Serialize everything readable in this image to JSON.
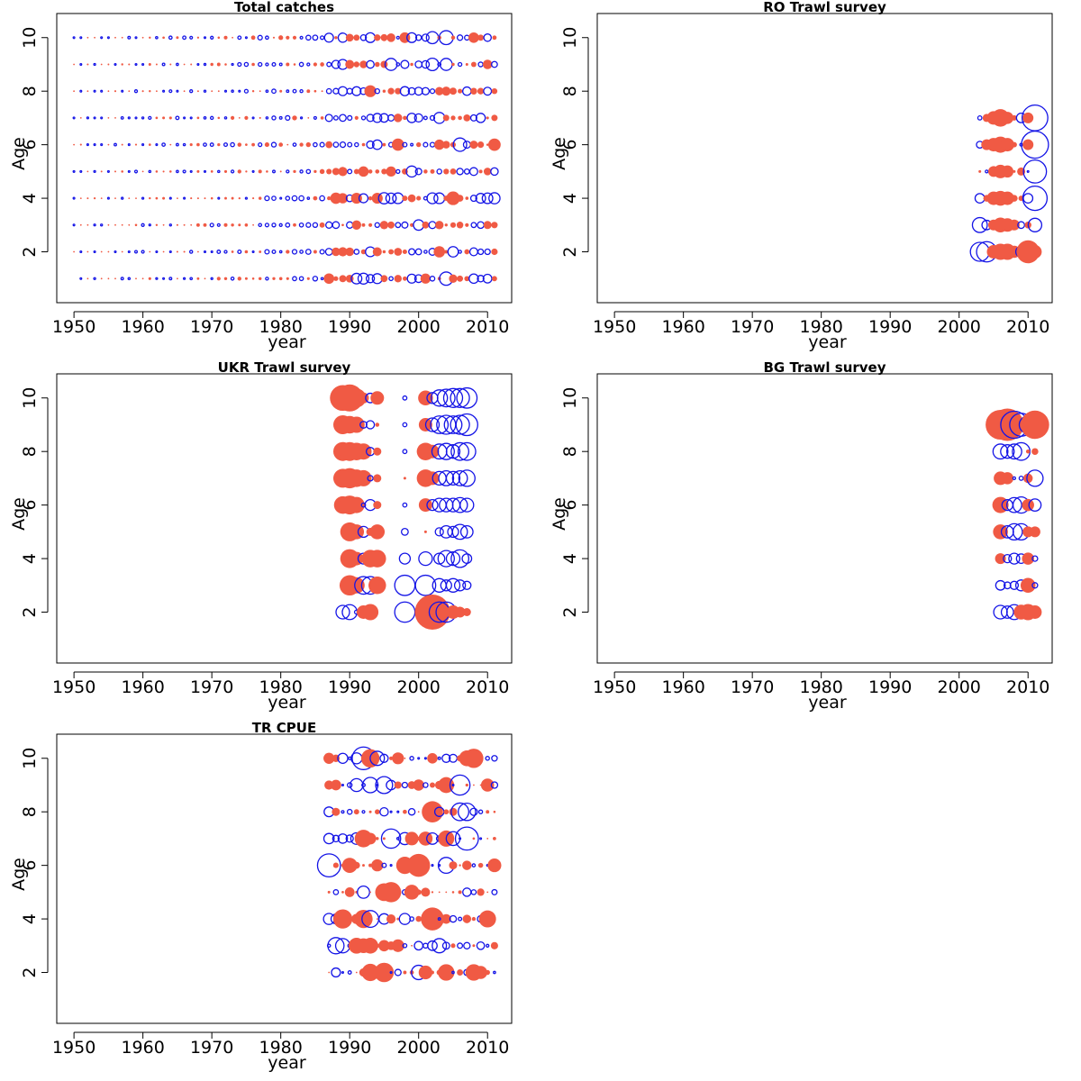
{
  "colors": {
    "positive": "#f05a44",
    "negative": "#1414e6"
  },
  "chart_data": [
    {
      "type": "scatter",
      "title": "Total catches",
      "xlabel": "year",
      "ylabel": "Age",
      "xlim": [
        1947.5,
        2013.5
      ],
      "ylim": [
        0.1,
        10.9
      ],
      "xticks": [
        "1950",
        "1960",
        "1970",
        "1980",
        "1990",
        "2000",
        "2010"
      ],
      "yticks": [
        "2",
        "4",
        "6",
        "8",
        "10"
      ],
      "grid": false,
      "x_range": [
        1950,
        2011
      ],
      "ages": [
        1,
        2,
        3,
        4,
        5,
        6,
        7,
        8,
        9,
        10
      ],
      "bubbles": []
    },
    {
      "type": "scatter",
      "title": "RO Trawl survey",
      "xlabel": "year",
      "ylabel": "Age",
      "xlim": [
        1947.5,
        2013.5
      ],
      "ylim": [
        0.1,
        10.9
      ],
      "xticks": [
        "1950",
        "1960",
        "1970",
        "1980",
        "1990",
        "2000",
        "2010"
      ],
      "yticks": [
        "2",
        "4",
        "6",
        "8",
        "10"
      ],
      "grid": false,
      "bubbles": [
        {
          "age": 7,
          "years": [
            2003,
            2004,
            2005,
            2006,
            2007,
            2008,
            2009,
            2010,
            2011
          ],
          "r": [
            0.3,
            -0.6,
            -1.0,
            -1.3,
            -0.9,
            -0.4,
            0.7,
            -0.8,
            1.9
          ]
        },
        {
          "age": 6,
          "years": [
            2003,
            2004,
            2005,
            2006,
            2007,
            2008,
            2009,
            2010,
            2011
          ],
          "r": [
            0.5,
            -0.8,
            -1.0,
            -1.2,
            -1.0,
            -0.4,
            0.2,
            -0.8,
            2.0
          ]
        },
        {
          "age": 5,
          "years": [
            2003,
            2004,
            2005,
            2006,
            2007,
            2008,
            2009,
            2010,
            2011
          ],
          "r": [
            -0.2,
            0.2,
            -0.8,
            -1.0,
            -0.9,
            -0.2,
            -0.6,
            0.1,
            1.7
          ]
        },
        {
          "age": 4,
          "years": [
            2003,
            2004,
            2005,
            2006,
            2007,
            2008,
            2009,
            2010,
            2011
          ],
          "r": [
            0.7,
            -0.5,
            -1.0,
            -1.1,
            -1.0,
            -0.5,
            -0.4,
            0.7,
            1.8
          ]
        },
        {
          "age": 3,
          "years": [
            2003,
            2004,
            2005,
            2006,
            2007,
            2008,
            2009,
            2010,
            2011
          ],
          "r": [
            1.1,
            0.7,
            -0.8,
            -1.1,
            -1.0,
            -0.8,
            0.5,
            -0.5,
            1.0
          ]
        },
        {
          "age": 2,
          "years": [
            2003,
            2004,
            2005,
            2006,
            2007,
            2008,
            2009,
            2010,
            2011
          ],
          "r": [
            1.4,
            1.5,
            -1.0,
            -1.2,
            -1.2,
            -0.9,
            0.8,
            -1.7,
            -1.0
          ]
        }
      ]
    },
    {
      "type": "scatter",
      "title": "UKR Trawl survey",
      "xlabel": "year",
      "ylabel": "Age",
      "xlim": [
        1947.5,
        2013.5
      ],
      "ylim": [
        0.1,
        10.9
      ],
      "xticks": [
        "1950",
        "1960",
        "1970",
        "1980",
        "1990",
        "2000",
        "2010"
      ],
      "yticks": [
        "2",
        "4",
        "6",
        "8",
        "10"
      ],
      "grid": false,
      "bubbles": [
        {
          "age": 10,
          "years": [
            1989,
            1990,
            1991,
            1992,
            1993,
            1994,
            1998,
            2001,
            2002,
            2003,
            2004,
            2005,
            2006,
            2007
          ],
          "r": [
            -1.9,
            -2.0,
            -1.4,
            -0.8,
            0.7,
            -1.0,
            0.3,
            -1.1,
            0.8,
            1.2,
            1.3,
            1.4,
            1.4,
            1.5
          ]
        },
        {
          "age": 9,
          "years": [
            1989,
            1990,
            1991,
            1992,
            1993,
            1994,
            1998,
            2001,
            2002,
            2003,
            2004,
            2005,
            2006,
            2007
          ],
          "r": [
            -1.4,
            -1.3,
            -1.2,
            0.5,
            0.6,
            -0.3,
            0.3,
            -1.0,
            1.0,
            1.3,
            1.4,
            1.3,
            1.4,
            1.6
          ]
        },
        {
          "age": 8,
          "years": [
            1989,
            1990,
            1991,
            1992,
            1993,
            1994,
            1998,
            2001,
            2002,
            2003,
            2004,
            2005,
            2006,
            2007
          ],
          "r": [
            -1.4,
            -1.4,
            -1.3,
            -1.2,
            0.6,
            -0.6,
            0.3,
            -1.3,
            -1.0,
            1.1,
            1.2,
            1.0,
            1.3,
            1.3
          ]
        },
        {
          "age": 7,
          "years": [
            1989,
            1990,
            1991,
            1992,
            1993,
            1994,
            1998,
            2001,
            2002,
            2003,
            2004,
            2005,
            2006,
            2007
          ],
          "r": [
            -1.4,
            -1.5,
            -1.3,
            -1.2,
            0.4,
            -0.6,
            -0.2,
            -1.3,
            -1.0,
            1.0,
            1.1,
            1.0,
            1.1,
            1.2
          ]
        },
        {
          "age": 6,
          "years": [
            1989,
            1990,
            1991,
            1992,
            1993,
            1994,
            1998,
            2001,
            2002,
            2003,
            2004,
            2005,
            2006,
            2007
          ],
          "r": [
            -1.3,
            -1.4,
            -1.2,
            0.3,
            0.8,
            -0.6,
            0.3,
            -1.0,
            0.8,
            1.0,
            1.0,
            1.0,
            1.1,
            1.0
          ]
        },
        {
          "age": 5,
          "years": [
            1990,
            1991,
            1992,
            1993,
            1994,
            1998,
            2001,
            2003,
            2004,
            2005,
            2006,
            2007
          ],
          "r": [
            -1.4,
            -1.1,
            0.8,
            -0.6,
            -1.1,
            0.5,
            -0.2,
            0.6,
            0.9,
            0.8,
            1.1,
            0.9
          ]
        },
        {
          "age": 4,
          "years": [
            1990,
            1991,
            1992,
            1993,
            1994,
            1998,
            2001,
            2003,
            2004,
            2005,
            2006,
            2007
          ],
          "r": [
            -1.4,
            -1.0,
            0.8,
            -1.3,
            -1.3,
            0.8,
            1.0,
            0.8,
            1.2,
            1.0,
            1.3,
            0.7
          ]
        },
        {
          "age": 3,
          "years": [
            1990,
            1991,
            1992,
            1993,
            1994,
            1998,
            2001,
            2003,
            2004,
            2005,
            2006,
            2007
          ],
          "r": [
            -1.5,
            -1.2,
            1.3,
            1.3,
            -1.3,
            1.5,
            1.5,
            1.0,
            0.8,
            1.0,
            0.8,
            0.6
          ]
        },
        {
          "age": 2,
          "years": [
            1989,
            1990,
            1991,
            1992,
            1993,
            1998,
            2001,
            2002,
            2003,
            2004,
            2005,
            2006,
            2007
          ],
          "r": [
            1.0,
            1.1,
            0.3,
            -1.0,
            -1.2,
            1.5,
            -1.1,
            -2.6,
            1.5,
            1.5,
            -1.0,
            -0.8,
            -0.6
          ]
        }
      ]
    },
    {
      "type": "scatter",
      "title": "BG Trawl survey",
      "xlabel": "year",
      "ylabel": "Age",
      "xlim": [
        1947.5,
        2013.5
      ],
      "ylim": [
        0.1,
        10.9
      ],
      "xticks": [
        "1950",
        "1960",
        "1970",
        "1980",
        "1990",
        "2000",
        "2010"
      ],
      "yticks": [
        "2",
        "4",
        "6",
        "8",
        "10"
      ],
      "grid": false,
      "bubbles": [
        {
          "age": 9,
          "years": [
            2006,
            2007,
            2008,
            2009,
            2010,
            2011
          ],
          "r": [
            -2.2,
            -2.4,
            2.0,
            1.7,
            1.3,
            -2.1
          ]
        },
        {
          "age": 8,
          "years": [
            2006,
            2007,
            2008,
            2009,
            2010,
            2011
          ],
          "r": [
            1.1,
            1.0,
            1.1,
            1.3,
            -0.3,
            -0.5
          ]
        },
        {
          "age": 7,
          "years": [
            2006,
            2007,
            2008,
            2009,
            2010,
            2011
          ],
          "r": [
            -1.0,
            -0.9,
            0.2,
            0.3,
            -0.7,
            1.2
          ]
        },
        {
          "age": 6,
          "years": [
            2006,
            2007,
            2008,
            2009,
            2010,
            2011
          ],
          "r": [
            -1.2,
            0.8,
            1.1,
            1.2,
            -0.9,
            0.9
          ]
        },
        {
          "age": 5,
          "years": [
            2006,
            2007,
            2008,
            2009,
            2010,
            2011
          ],
          "r": [
            -1.1,
            0.9,
            1.2,
            1.2,
            -0.8,
            -0.8
          ]
        },
        {
          "age": 4,
          "years": [
            2006,
            2007,
            2008,
            2009,
            2010,
            2011
          ],
          "r": [
            -0.8,
            0.6,
            0.8,
            0.7,
            -0.9,
            0.4
          ]
        },
        {
          "age": 3,
          "years": [
            2006,
            2007,
            2008,
            2009,
            2010,
            2011
          ],
          "r": [
            0.7,
            0.5,
            0.6,
            0.8,
            -1.1,
            0.4
          ]
        },
        {
          "age": 2,
          "years": [
            2006,
            2007,
            2008,
            2009,
            2010,
            2011
          ],
          "r": [
            1.0,
            0.9,
            1.1,
            -1.1,
            -1.2,
            -1.0
          ]
        }
      ]
    },
    {
      "type": "scatter",
      "title": "TR CPUE",
      "xlabel": "year",
      "ylabel": "Age",
      "xlim": [
        1947.5,
        2013.5
      ],
      "ylim": [
        0.1,
        10.9
      ],
      "xticks": [
        "1950",
        "1960",
        "1970",
        "1980",
        "1990",
        "2000",
        "2010"
      ],
      "yticks": [
        "2",
        "4",
        "6",
        "8",
        "10"
      ],
      "grid": false,
      "x_range": [
        1987,
        2011
      ],
      "ages": [
        2,
        3,
        4,
        5,
        6,
        7,
        8,
        9,
        10
      ],
      "bubbles": []
    }
  ]
}
